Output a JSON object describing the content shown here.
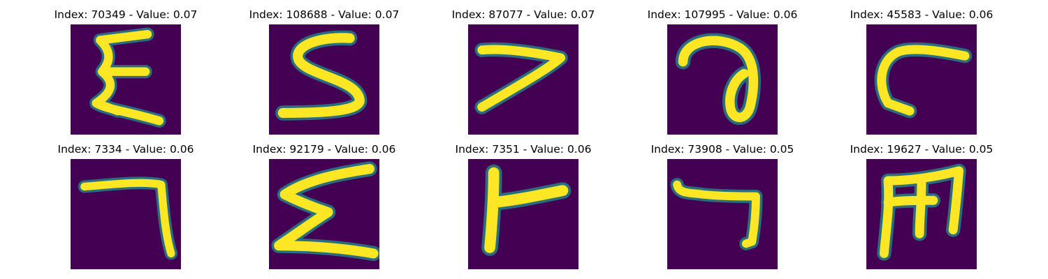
{
  "colors": {
    "background": "#440154",
    "stroke": "#fde725",
    "edge": "#21918c"
  },
  "panels": [
    {
      "index": "70349",
      "value": "0.07",
      "title": "Index: 70349 - Value: 0.07",
      "glyph": "Epsilon-like (Ξ/Σ shape)"
    },
    {
      "index": "108688",
      "value": "0.07",
      "title": "Index: 108688 - Value: 0.07",
      "glyph": "S shape"
    },
    {
      "index": "87077",
      "value": "0.07",
      "title": "Index: 87077 - Value: 0.07",
      "glyph": "7 / angle shape"
    },
    {
      "index": "107995",
      "value": "0.06",
      "title": "Index: 107995 - Value: 0.06",
      "glyph": "loop shape"
    },
    {
      "index": "45583",
      "value": "0.06",
      "title": "Index: 45583 - Value: 0.06",
      "glyph": "C shape"
    },
    {
      "index": "7334",
      "value": "0.06",
      "title": "Index: 7334 - Value: 0.06",
      "glyph": "7 / corner shape"
    },
    {
      "index": "92179",
      "value": "0.06",
      "title": "Index: 92179 - Value: 0.06",
      "glyph": "Σ zigzag shape"
    },
    {
      "index": "7351",
      "value": "0.06",
      "title": "Index: 7351 - Value: 0.06",
      "glyph": "F-like shape"
    },
    {
      "index": "73908",
      "value": "0.05",
      "title": "Index: 73908 - Value: 0.05",
      "glyph": "7 shape"
    },
    {
      "index": "19627",
      "value": "0.05",
      "title": "Index: 19627 - Value: 0.05",
      "glyph": "M/E-like shape"
    }
  ]
}
